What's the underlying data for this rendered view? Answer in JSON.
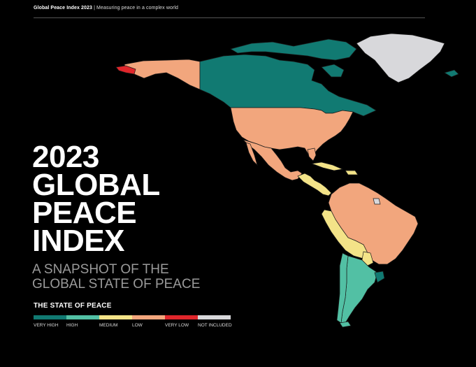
{
  "header": {
    "title": "Global Peace Index 2023",
    "separator": "|",
    "subtitle": "Measuring peace in a complex world"
  },
  "title_lines": [
    "2023",
    "GLOBAL",
    "PEACE",
    "INDEX"
  ],
  "subtitle_lines": [
    "A SNAPSHOT OF THE",
    "GLOBAL STATE OF PEACE"
  ],
  "legend": {
    "title": "THE STATE OF PEACE",
    "items": [
      {
        "label": "VERY HIGH",
        "color": "#117a72"
      },
      {
        "label": "HIGH",
        "color": "#52c0a4"
      },
      {
        "label": "MEDIUM",
        "color": "#f3e388"
      },
      {
        "label": "LOW",
        "color": "#f2a67d"
      },
      {
        "label": "VERY LOW",
        "color": "#e0262b"
      },
      {
        "label": "NOT INCLUDED",
        "color": "#d8d8db"
      }
    ]
  },
  "map_regions": [
    {
      "name": "alaska",
      "level": "LOW",
      "color": "#f2a67d"
    },
    {
      "name": "russia-far-east",
      "level": "VERY LOW",
      "color": "#e0262b"
    },
    {
      "name": "canada",
      "level": "VERY HIGH",
      "color": "#117a72"
    },
    {
      "name": "greenland",
      "level": "NOT INCLUDED",
      "color": "#d8d8db"
    },
    {
      "name": "usa",
      "level": "LOW",
      "color": "#f2a67d"
    },
    {
      "name": "mexico",
      "level": "LOW",
      "color": "#f2a67d"
    },
    {
      "name": "central-america",
      "level": "MEDIUM",
      "color": "#f3e388"
    },
    {
      "name": "colombia-venezuela-brazil",
      "level": "LOW",
      "color": "#f2a67d"
    },
    {
      "name": "peru-bolivia",
      "level": "MEDIUM",
      "color": "#f3e388"
    },
    {
      "name": "chile",
      "level": "HIGH",
      "color": "#52c0a4"
    },
    {
      "name": "argentina",
      "level": "HIGH",
      "color": "#52c0a4"
    },
    {
      "name": "uruguay",
      "level": "VERY HIGH",
      "color": "#117a72"
    },
    {
      "name": "french-guiana",
      "level": "NOT INCLUDED",
      "color": "#d8d8db"
    }
  ]
}
